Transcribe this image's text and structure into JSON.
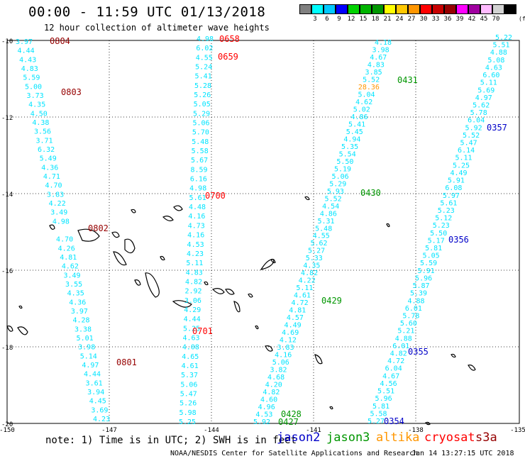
{
  "title": "00:00 - 11:59 UTC 01/13/2018",
  "subtitle": "12 hour collection of altimeter wave heights",
  "legend": {
    "colors": [
      "#808080",
      "#00ffff",
      "#00c8ff",
      "#0000ff",
      "#00d200",
      "#00b400",
      "#009600",
      "#ffff00",
      "#ffc800",
      "#ff9600",
      "#ff0000",
      "#c80000",
      "#960000",
      "#ff00ff",
      "#a000a0",
      "#ffbbff",
      "#d2d2d2",
      "#000000"
    ],
    "labels": [
      "3",
      "6",
      "9",
      "12",
      "15",
      "18",
      "21",
      "24",
      "27",
      "30",
      "33",
      "36",
      "39",
      "42",
      "45",
      "70"
    ],
    "unit": "(ft)"
  },
  "axes": {
    "lat_labels": [
      "-10",
      "-12",
      "-14",
      "-16",
      "-18",
      "-20"
    ],
    "lon_labels": [
      "-150",
      "-147",
      "-144",
      "-141",
      "-138",
      "-135"
    ]
  },
  "tracks": [
    {
      "name": "T1",
      "time_labels": [
        {
          "text": "0804",
          "color": "#960000"
        },
        {
          "text": "0803",
          "color": "#960000"
        },
        {
          "text": "0802",
          "color": "#960000"
        },
        {
          "text": "0801",
          "color": "#960000"
        }
      ],
      "values": [
        "3.97",
        "4.44",
        "4.43",
        "4.83",
        "5.59",
        "5.00",
        "3.73",
        "4.35",
        "4.50",
        "4.38",
        "3.56",
        "3.71",
        "6.32",
        "5.49",
        "4.36",
        "4.71",
        "4.70",
        "3.83",
        "4.22",
        "3.49",
        "4.98",
        "",
        "4.70",
        "4.26",
        "4.81",
        "4.62",
        "3.49",
        "3.55",
        "4.35",
        "4.36",
        "3.97",
        "4.28",
        "3.38",
        "5.01",
        "3.98",
        "5.14",
        "4.97",
        "4.44",
        "3.61",
        "3.94",
        "4.45",
        "3.69",
        "4.23"
      ]
    },
    {
      "name": "T2",
      "time_labels": [
        {
          "text": "0658",
          "color": "#ff0000"
        },
        {
          "text": "0659",
          "color": "#ff0000"
        },
        {
          "text": "0700",
          "color": "#ff0000"
        },
        {
          "text": "0701",
          "color": "#ff0000"
        }
      ],
      "values": [
        "4.98",
        "6.02",
        "4.55",
        "5.24",
        "5.41",
        "5.28",
        "5.26",
        "5.05",
        "5.29",
        "5.06",
        "5.70",
        "5.48",
        "5.58",
        "5.67",
        "8.59",
        "6.16",
        "4.98",
        "5.61",
        "4.48",
        "4.16",
        "4.73",
        "4.16",
        "4.53",
        "4.23",
        "5.11",
        "4.83",
        "4.82",
        "2.92",
        "3.06",
        "4.29",
        "4.44",
        "5.25",
        "4.63",
        "4.08",
        "4.65",
        "4.61",
        "5.37",
        "5.06",
        "5.47",
        "5.26",
        "5.98",
        "5.25"
      ]
    },
    {
      "name": "T3",
      "time_labels": [
        {
          "text": "0431",
          "color": "#009600"
        },
        {
          "text": "0430",
          "color": "#009600"
        },
        {
          "text": "0429",
          "color": "#009600"
        },
        {
          "text": "0428",
          "color": "#009600"
        },
        {
          "text": "0427",
          "color": "#009600"
        }
      ],
      "values": [
        "4.18",
        "3.98",
        "4.67",
        "4.83",
        "3.85",
        "5.52",
        "28.36",
        "5.04",
        "4.62",
        "5.02",
        "4.86",
        "5.41",
        "5.45",
        "4.94",
        "5.35",
        "5.54",
        "5.50",
        "5.19",
        "5.06",
        "5.29",
        "5.93",
        "5.52",
        "4.54",
        "4.86",
        "5.31",
        "5.48",
        "4.55",
        "5.62",
        "5.27",
        "5.33",
        "4.35",
        "4.82",
        "4.22",
        "5.11",
        "4.61",
        "4.72",
        "4.81",
        "4.57",
        "4.49",
        "4.69",
        "4.12",
        "3.83",
        "4.16",
        "5.06",
        "3.82",
        "4.68",
        "4.20",
        "4.82",
        "4.60",
        "4.96",
        "4.53",
        "5.92"
      ]
    },
    {
      "name": "T4",
      "time_labels": [
        {
          "text": "0357",
          "color": "#0000c8"
        },
        {
          "text": "0356",
          "color": "#0000c8"
        },
        {
          "text": "0355",
          "color": "#0000c8"
        },
        {
          "text": "0354",
          "color": "#0000c8"
        }
      ],
      "values": [
        "5.22",
        "5.51",
        "4.88",
        "5.08",
        "4.63",
        "6.60",
        "5.11",
        "5.69",
        "4.97",
        "5.62",
        "5.78",
        "6.04",
        "5.92",
        "5.52",
        "5.47",
        "6.14",
        "5.11",
        "5.25",
        "4.49",
        "5.91",
        "6.08",
        "5.97",
        "5.61",
        "5.23",
        "5.12",
        "5.23",
        "5.50",
        "5.17",
        "5.81",
        "5.05",
        "5.59",
        "5.91",
        "5.96",
        "5.87",
        "5.39",
        "4.88",
        "6.01",
        "5.78",
        "5.60",
        "5.21",
        "4.88",
        "6.01",
        "4.82",
        "4.72",
        "6.04",
        "4.67",
        "4.56",
        "5.51",
        "5.96",
        "5.81",
        "5.58",
        "5.27"
      ]
    }
  ],
  "note": "note: 1) Time is in UTC; 2) SWH is in feet",
  "satellites": [
    {
      "name": "jason2",
      "color": "#0000c8"
    },
    {
      "name": "jason3",
      "color": "#009600"
    },
    {
      "name": "altika",
      "color": "#ff9600"
    },
    {
      "name": "cryosat",
      "color": "#ff0000"
    },
    {
      "name": "s3a",
      "color": "#960000"
    }
  ],
  "credit": "NOAA/NESDIS Center for Satellite Applications and Research",
  "timestamp": "Jan 14 13:27:15 UTC 2018"
}
